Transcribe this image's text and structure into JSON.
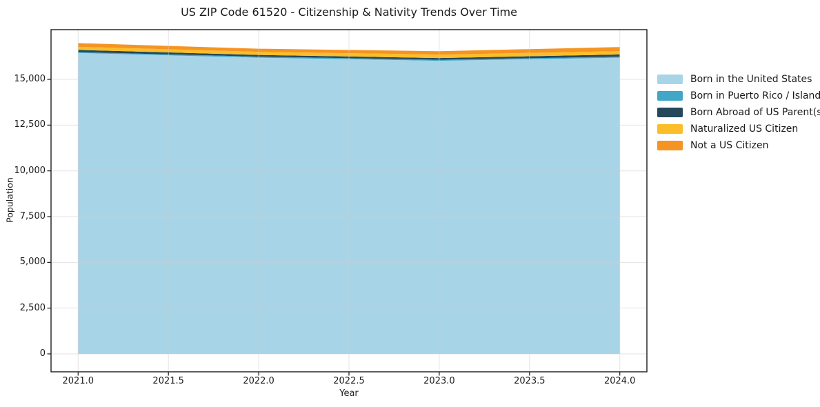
{
  "chart_data": {
    "type": "area",
    "stacked": true,
    "title": "US ZIP Code 61520 - Citizenship & Nativity Trends Over Time",
    "xlabel": "Year",
    "ylabel": "Population",
    "x": [
      2021,
      2022,
      2023,
      2024
    ],
    "series": [
      {
        "name": "Born in the United States",
        "color": "#A8D4E8",
        "values": [
          16440,
          16185,
          16015,
          16185
        ]
      },
      {
        "name": "Born in Puerto Rico / Islands",
        "color": "#42A6C6",
        "values": [
          50,
          55,
          55,
          55
        ]
      },
      {
        "name": "Born Abroad of US Parent(s)",
        "color": "#25485B",
        "values": [
          115,
          95,
          95,
          120
        ]
      },
      {
        "name": "Naturalized US Citizen",
        "color": "#FBBE29",
        "values": [
          170,
          170,
          185,
          180
        ]
      },
      {
        "name": "Not a US Citizen",
        "color": "#F59422",
        "values": [
          205,
          170,
          190,
          225
        ]
      }
    ],
    "x_tick_labels": [
      "2021.0",
      "2021.5",
      "2022.0",
      "2022.5",
      "2023.0",
      "2023.5",
      "2024.0"
    ],
    "x_tick_values": [
      2021,
      2021.5,
      2022,
      2022.5,
      2023,
      2023.5,
      2024
    ],
    "y_tick_labels": [
      "0",
      "2,500",
      "5,000",
      "7,500",
      "10,000",
      "12,500",
      "15,000"
    ],
    "y_tick_values": [
      0,
      2500,
      5000,
      7500,
      10000,
      12500,
      15000
    ],
    "xlim": [
      2020.85,
      2024.15
    ],
    "ylim": [
      -980,
      17715
    ],
    "grid": true,
    "legend_position": "right of plot",
    "colors": {
      "frame": "#1A1A1A",
      "text": "#1A1A1A",
      "grid": "#CCCCCC",
      "background": "#FFFFFF"
    }
  }
}
